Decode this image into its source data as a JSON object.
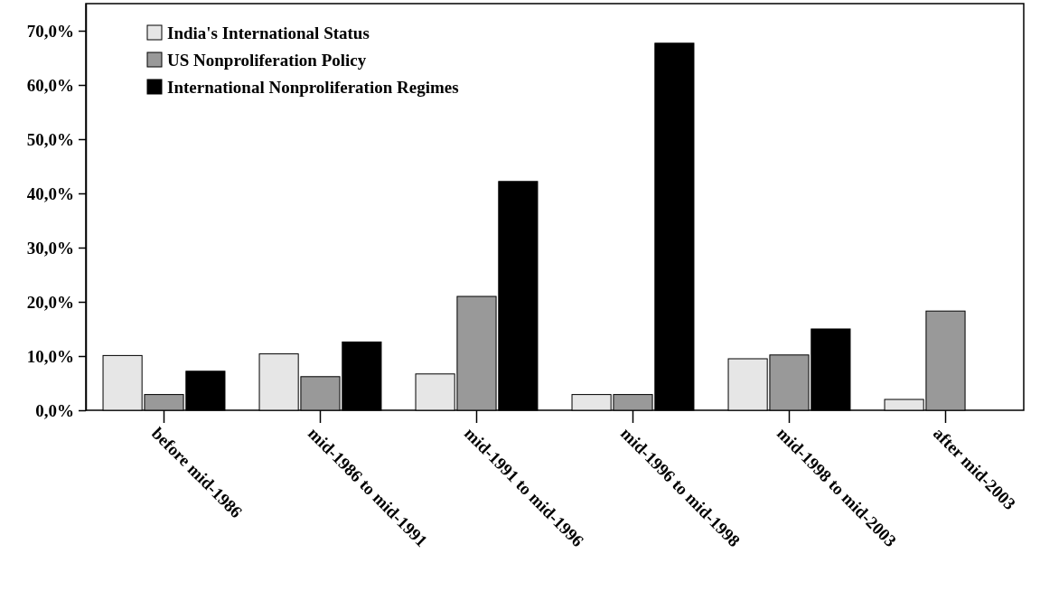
{
  "chart_data": {
    "type": "bar",
    "categories": [
      "before mid-1986",
      "mid-1986 to mid-1991",
      "mid-1991 to mid-1996",
      "mid-1996 to mid-1998",
      "mid-1998 to mid-2003",
      "after mid-2003"
    ],
    "series": [
      {
        "name": "India's International Status",
        "color": "#e6e6e6",
        "values": [
          10.1,
          10.4,
          6.7,
          2.9,
          9.5,
          2.0
        ]
      },
      {
        "name": "US Nonproliferation Policy",
        "color": "#999999",
        "values": [
          2.9,
          6.2,
          21.0,
          2.9,
          10.2,
          18.3
        ]
      },
      {
        "name": "International Nonproliferation Regimes",
        "color": "#000000",
        "values": [
          7.2,
          12.6,
          42.2,
          67.7,
          15.0,
          0
        ]
      }
    ],
    "ylim": [
      0,
      75
    ],
    "yticks": [
      {
        "value": 0,
        "label": "0,0%"
      },
      {
        "value": 10,
        "label": "10,0%"
      },
      {
        "value": 20,
        "label": "20,0%"
      },
      {
        "value": 30,
        "label": "30,0%"
      },
      {
        "value": 40,
        "label": "40,0%"
      },
      {
        "value": 50,
        "label": "50,0%"
      },
      {
        "value": 60,
        "label": "60,0%"
      },
      {
        "value": 70,
        "label": "70,0%"
      }
    ],
    "grid": false,
    "legend": "top left"
  }
}
